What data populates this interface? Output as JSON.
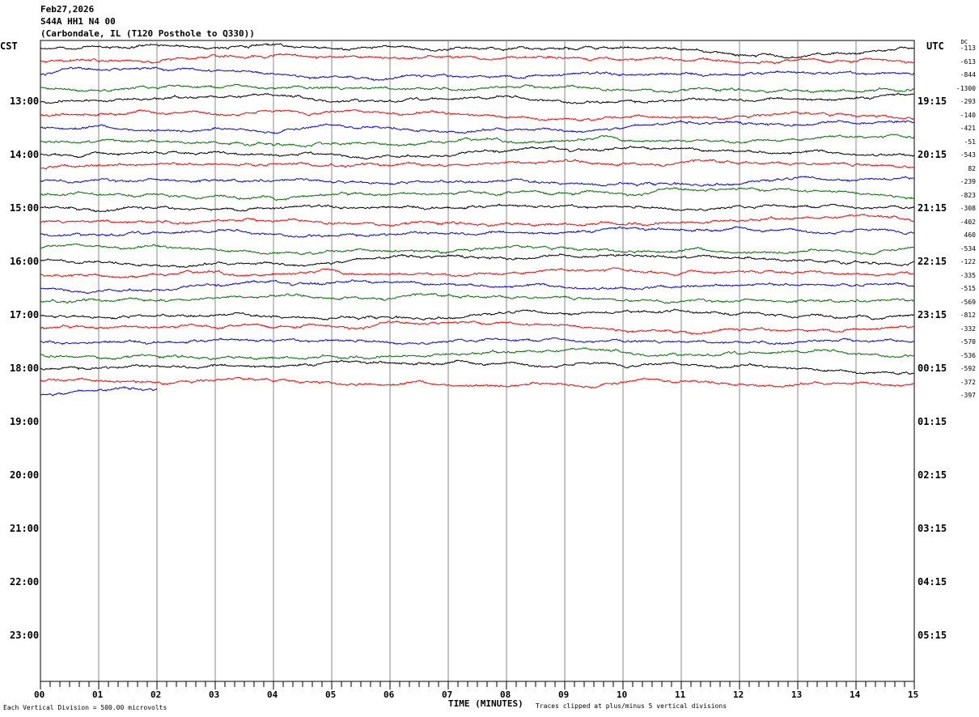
{
  "header": {
    "date": "Feb27,2026",
    "station": "S44A HH1 N4 00",
    "location": "(Carbondale, IL (T120 Posthole to Q330))"
  },
  "left_axis_label": "CST",
  "right_axis_label": "UTC",
  "dc_label": "DC",
  "footer": {
    "scale": "Each Vertical Division =  500.00 microvolts",
    "xlabel": "TIME (MINUTES)",
    "clip_note": "Traces clipped at plus/minus 5 vertical divisions"
  },
  "chart_data": {
    "type": "line",
    "title": "",
    "xlabel": "TIME (MINUTES)",
    "xlim": [
      0,
      15
    ],
    "x_ticks": [
      "00",
      "01",
      "02",
      "03",
      "04",
      "05",
      "06",
      "07",
      "08",
      "09",
      "10",
      "11",
      "12",
      "13",
      "14",
      "15"
    ],
    "grid": true,
    "left_hour_labels": [
      "13:00",
      "14:00",
      "15:00",
      "16:00",
      "17:00",
      "18:00",
      "19:00",
      "20:00",
      "21:00",
      "22:00",
      "23:00"
    ],
    "right_hour_labels": [
      "19:15",
      "20:15",
      "21:15",
      "22:15",
      "23:15",
      "00:15",
      "01:15",
      "02:15",
      "03:15",
      "04:15",
      "05:15"
    ],
    "trace_colors": [
      "#000000",
      "#ff0000",
      "#0000ff",
      "#007000"
    ],
    "first_trace_time": "12:00",
    "trace_interval_minutes": 15,
    "last_trace_end_minute": 2,
    "dc_offsets": [
      -113,
      -613,
      -844,
      -1300,
      -293,
      -140,
      -421,
      -51,
      -543,
      82,
      -239,
      -823,
      -308,
      -402,
      460,
      -534,
      -122,
      -335,
      -515,
      -569,
      -812,
      -332,
      -570,
      -536,
      -592,
      -372,
      -397
    ]
  }
}
